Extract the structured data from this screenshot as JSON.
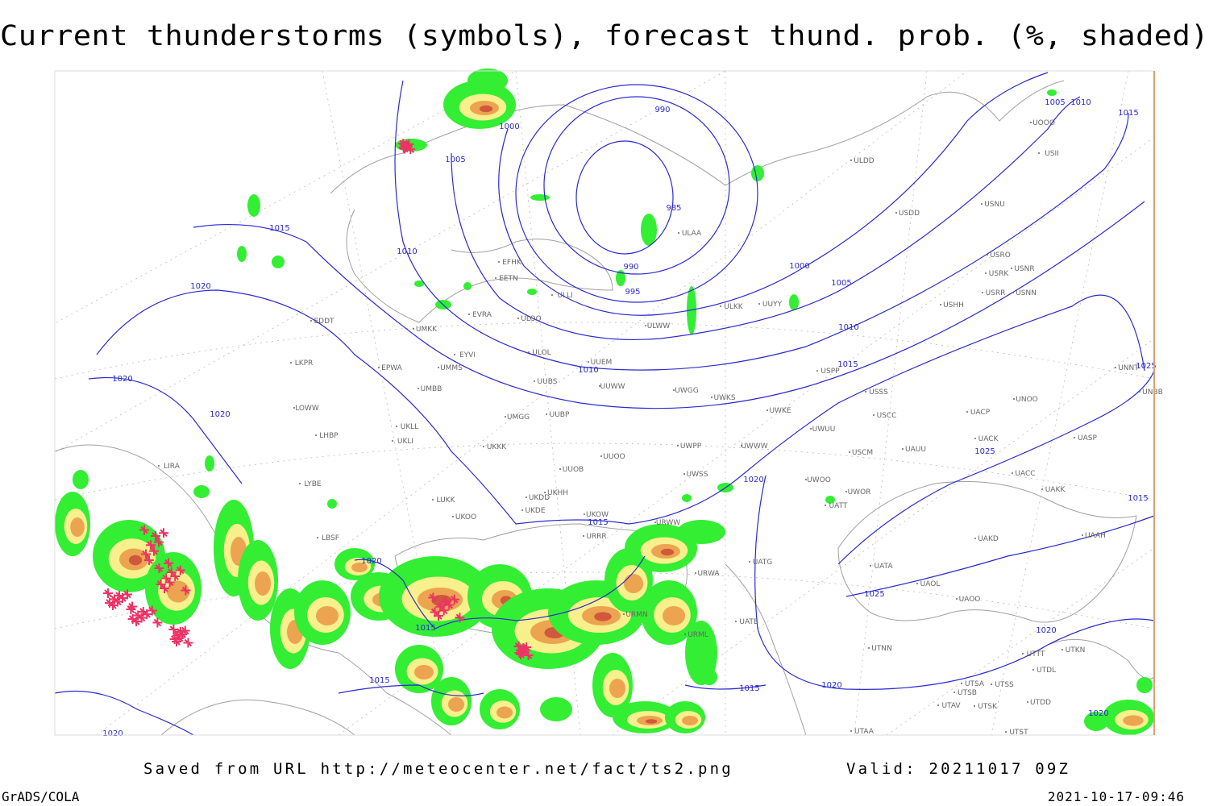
{
  "title": "Current thunderstorms (symbols), forecast thund. prob. (%, shaded)",
  "footer": {
    "saved": "Saved from URL http://meteocenter.net/fact/ts2.png",
    "valid": "Valid: 20211017 09Z",
    "software": "GrADS/COLA",
    "timestamp": "2021-10-17-09:46"
  },
  "isobar_labels": [
    "990",
    "1000",
    "1005",
    "985",
    "1015",
    "1010",
    "990",
    "1000",
    "995",
    "1005",
    "1020",
    "1010",
    "1010",
    "1015",
    "1020",
    "1020",
    "1025",
    "1020",
    "1015",
    "1015",
    "1020",
    "1025",
    "1015",
    "1020",
    "1015",
    "1015",
    "1020",
    "1020",
    "1005",
    "1010",
    "1015",
    "1025",
    "1020"
  ],
  "stations": [
    "ULDD",
    "USNU",
    "USDD",
    "ULAA",
    "EFHK",
    "EETN",
    "UUYY",
    "ULKK",
    "EVRA",
    "ULWW",
    "EDDT",
    "UMKK",
    "ULOL",
    "EYVI",
    "UUEM",
    "EPWA",
    "UMMS",
    "LKPR",
    "UUWW",
    "UMBB",
    "UUBS",
    "UWGG",
    "UWKS",
    "USSS",
    "USRR",
    "UWKE",
    "USCC",
    "UNOO",
    "LOWW",
    "UUBP",
    "UMGG",
    "UKLL",
    "UWUU",
    "UACP",
    "UKLI",
    "LHBP",
    "UKKK",
    "UWPP",
    "UWWW",
    "USCM",
    "UAUU",
    "UACK",
    "UASP",
    "LIRA",
    "UUOB",
    "UUOO",
    "LYBE",
    "UWSS",
    "UKHH",
    "UKDD",
    "UWOO",
    "UWOR",
    "UACC",
    "UAKK",
    "LUKK",
    "UKOO",
    "UKDE",
    "UKOW",
    "URWW",
    "UATT",
    "LBSF",
    "URRR",
    "UAKD",
    "UAAH",
    "UATG",
    "URWA",
    "UATA",
    "UAOL",
    "UAOO",
    "UATE",
    "URMN",
    "URML",
    "UTNN",
    "UTTT",
    "UTKN",
    "UTDL",
    "UTSA",
    "UTSB",
    "UTSS",
    "UTDD",
    "UTAV",
    "UTSK",
    "UTAA",
    "UTST",
    "ULLI",
    "ULOO",
    "USPP",
    "USHH",
    "USRK",
    "USRO",
    "USNR",
    "USNN",
    "USII",
    "UOOO",
    "UNBB",
    "UNNT"
  ]
}
